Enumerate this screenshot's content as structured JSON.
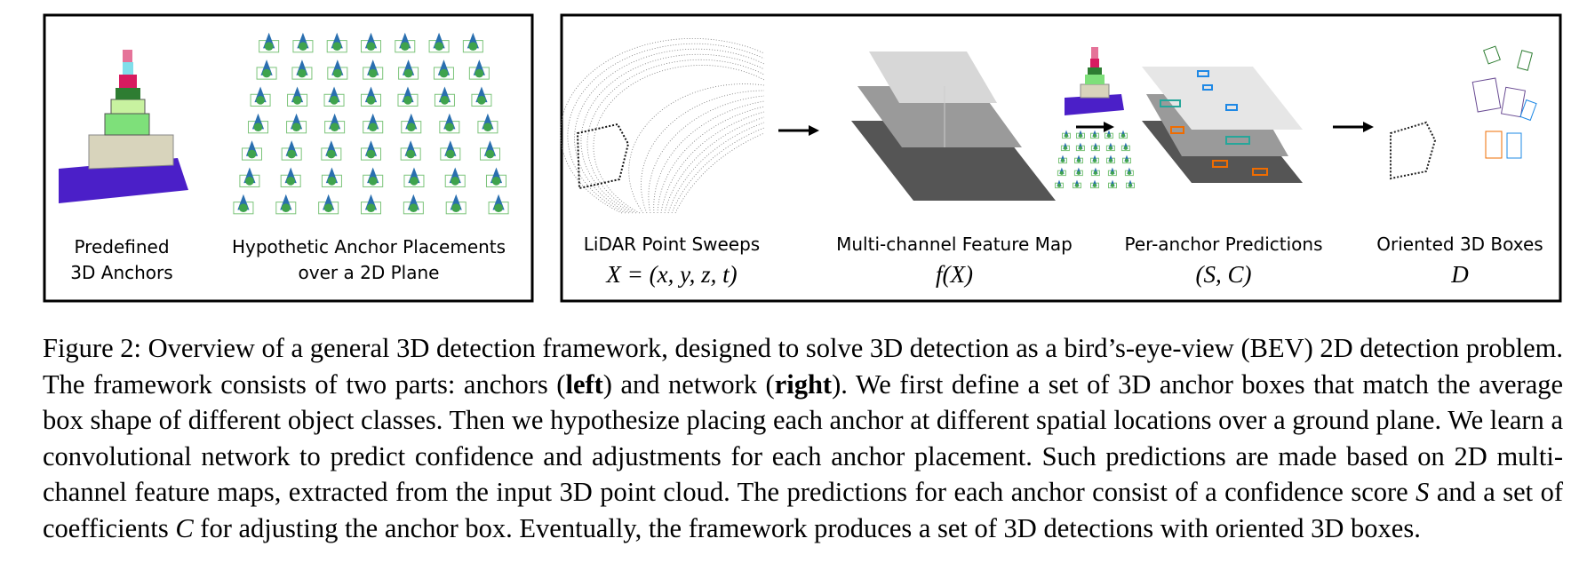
{
  "left_panel": {
    "labels": [
      [
        "Predefined",
        "3D Anchors"
      ],
      [
        "Hypothetic Anchor Placements",
        "over a 2D Plane"
      ]
    ]
  },
  "right_panel": {
    "stages": [
      {
        "label": "LiDAR Point Sweeps",
        "math": "X = (x, y, z, t)"
      },
      {
        "label": "Multi-channel Feature Map",
        "math": "f(X)"
      },
      {
        "label": "Per-anchor Predictions",
        "math": "(S, C)"
      },
      {
        "label": "Oriented 3D Boxes",
        "math": "D"
      }
    ]
  },
  "caption": [
    "Figure 2: Overview of a general 3D detection framework, designed to solve 3D detection as a bird’s-eye-view (BEV) 2D detection problem. The framework consists of two parts: anchors (",
    "left",
    ") and network (",
    "right",
    "). We first define a set of 3D anchor boxes that match the average box shape of different object classes. Then we hypothesize placing each anchor at different spatial locations over a ground plane. We learn a convolutional network to predict confidence and adjustments for each anchor placement. Such predictions are made based on 2D multi-channel feature maps, extracted from the input 3D point cloud. The predictions for each anchor consist of a confidence score ",
    "S",
    " and a set of coefficients ",
    "C",
    " for adjusting the anchor box. Eventually, the framework produces a set of 3D detections with oriented 3D boxes."
  ]
}
